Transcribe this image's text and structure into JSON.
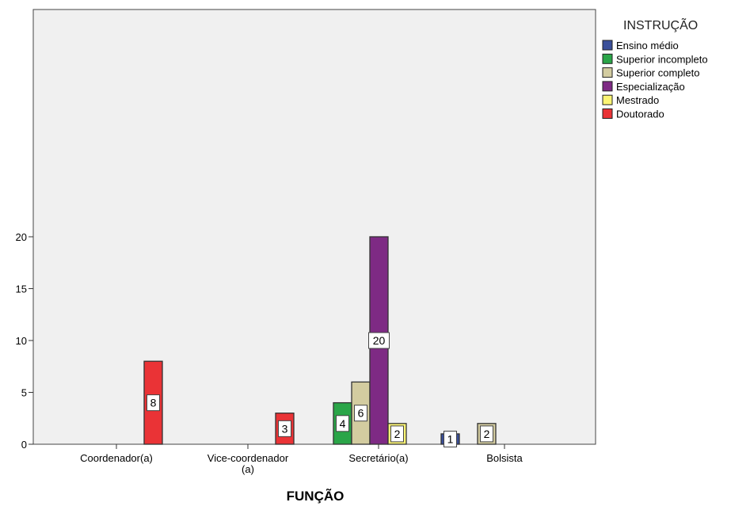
{
  "chart_data": {
    "type": "bar",
    "xlabel": "FUNÇÃO",
    "ylabel": "",
    "ylim": [
      0,
      21
    ],
    "yticks": [
      0,
      5,
      10,
      15,
      20
    ],
    "grid": false,
    "legend_position": "right",
    "legend_title": "INSTRUÇÃO",
    "categories": [
      "Coordenador(a)",
      "Vice-coordenador\n(a)",
      "Secretário(a)",
      "Bolsista"
    ],
    "series": [
      {
        "name": "Ensino médio",
        "color": "#3a4f9a",
        "values": [
          0,
          0,
          0,
          1
        ]
      },
      {
        "name": "Superior incompleto",
        "color": "#2aa548",
        "values": [
          0,
          0,
          4,
          0
        ]
      },
      {
        "name": "Superior completo",
        "color": "#d3cca0",
        "values": [
          0,
          0,
          6,
          2
        ]
      },
      {
        "name": "Especialização",
        "color": "#7e2a84",
        "values": [
          0,
          0,
          20,
          0
        ]
      },
      {
        "name": "Mestrado",
        "color": "#fcf574",
        "values": [
          0,
          0,
          2,
          0
        ]
      },
      {
        "name": "Doutorado",
        "color": "#ea3336",
        "values": [
          8,
          3,
          0,
          0
        ]
      }
    ]
  }
}
